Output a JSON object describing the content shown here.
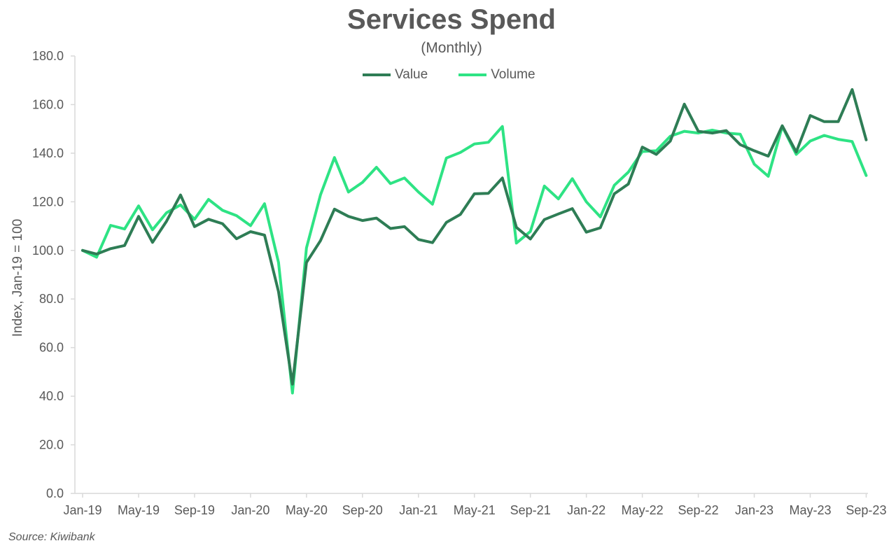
{
  "chart_data": {
    "type": "line",
    "title": "Services Spend",
    "subtitle": "(Monthly)",
    "ylabel": "Index, Jan-19 = 100",
    "xlabel": "",
    "ylim": [
      0,
      180
    ],
    "yticks": [
      "0.0",
      "20.0",
      "40.0",
      "60.0",
      "80.0",
      "100.0",
      "120.0",
      "140.0",
      "160.0",
      "180.0"
    ],
    "x": [
      "Jan-19",
      "Feb-19",
      "Mar-19",
      "Apr-19",
      "May-19",
      "Jun-19",
      "Jul-19",
      "Aug-19",
      "Sep-19",
      "Oct-19",
      "Nov-19",
      "Dec-19",
      "Jan-20",
      "Feb-20",
      "Mar-20",
      "Apr-20",
      "May-20",
      "Jun-20",
      "Jul-20",
      "Aug-20",
      "Sep-20",
      "Oct-20",
      "Nov-20",
      "Dec-20",
      "Jan-21",
      "Feb-21",
      "Mar-21",
      "Apr-21",
      "May-21",
      "Jun-21",
      "Jul-21",
      "Aug-21",
      "Sep-21",
      "Oct-21",
      "Nov-21",
      "Dec-21",
      "Jan-22",
      "Feb-22",
      "Mar-22",
      "Apr-22",
      "May-22",
      "Jun-22",
      "Jul-22",
      "Aug-22",
      "Sep-22",
      "Oct-22",
      "Nov-22",
      "Dec-22",
      "Jan-23",
      "Feb-23",
      "Mar-23",
      "Apr-23",
      "May-23",
      "Jun-23",
      "Jul-23",
      "Aug-23",
      "Sep-23"
    ],
    "xtick_labels": [
      "Jan-19",
      "May-19",
      "Sep-19",
      "Jan-20",
      "May-20",
      "Sep-20",
      "Jan-21",
      "May-21",
      "Sep-21",
      "Jan-22",
      "May-22",
      "Sep-22",
      "Jan-23",
      "May-23",
      "Sep-23"
    ],
    "legend_position": "top-center",
    "grid": false,
    "series": [
      {
        "name": "Value",
        "color": "#2e7d55",
        "values": [
          100.0,
          98.5,
          100.7,
          102.0,
          114.0,
          103.3,
          112.0,
          122.8,
          109.8,
          112.8,
          111.0,
          104.8,
          107.7,
          106.3,
          83.0,
          45.0,
          95.0,
          104.0,
          117.0,
          114.0,
          112.3,
          113.3,
          109.0,
          109.8,
          104.5,
          103.2,
          111.5,
          114.8,
          123.3,
          123.5,
          129.8,
          109.5,
          104.7,
          112.7,
          115.0,
          117.2,
          107.5,
          109.3,
          123.3,
          127.3,
          142.5,
          139.5,
          145.0,
          160.2,
          149.0,
          148.3,
          149.3,
          143.5,
          141.0,
          138.8,
          151.3,
          140.5,
          155.5,
          153.0,
          153.0,
          166.2,
          145.5
        ]
      },
      {
        "name": "Volume",
        "color": "#2ee384",
        "values": [
          100.0,
          97.2,
          110.3,
          108.8,
          118.3,
          108.5,
          115.5,
          118.7,
          112.8,
          121.0,
          116.5,
          114.3,
          110.2,
          119.2,
          95.0,
          41.3,
          101.0,
          122.8,
          138.2,
          124.0,
          128.0,
          134.2,
          127.5,
          129.8,
          124.0,
          119.0,
          138.0,
          140.3,
          143.8,
          144.5,
          151.0,
          103.0,
          107.8,
          126.5,
          121.2,
          129.5,
          120.0,
          113.8,
          126.8,
          132.2,
          140.7,
          141.0,
          147.0,
          149.0,
          148.3,
          149.5,
          148.3,
          147.8,
          135.5,
          130.5,
          151.0,
          139.5,
          145.0,
          147.3,
          145.7,
          144.8,
          130.8
        ]
      }
    ]
  },
  "source": "Source: Kiwibank"
}
